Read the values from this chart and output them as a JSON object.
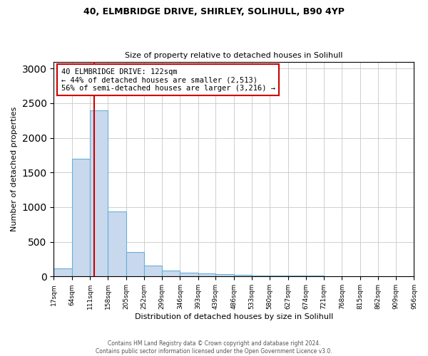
{
  "title1": "40, ELMBRIDGE DRIVE, SHIRLEY, SOLIHULL, B90 4YP",
  "title2": "Size of property relative to detached houses in Solihull",
  "xlabel": "Distribution of detached houses by size in Solihull",
  "ylabel": "Number of detached properties",
  "bar_values": [
    120,
    1700,
    2400,
    940,
    350,
    160,
    90,
    60,
    40,
    30,
    20,
    10,
    10,
    10,
    10,
    5,
    5,
    5,
    5,
    5
  ],
  "bin_edges": [
    17,
    64,
    111,
    158,
    205,
    252,
    299,
    346,
    393,
    439,
    486,
    533,
    580,
    627,
    674,
    721,
    768,
    815,
    862,
    909,
    956
  ],
  "tick_labels": [
    "17sqm",
    "64sqm",
    "111sqm",
    "158sqm",
    "205sqm",
    "252sqm",
    "299sqm",
    "346sqm",
    "393sqm",
    "439sqm",
    "486sqm",
    "533sqm",
    "580sqm",
    "627sqm",
    "674sqm",
    "721sqm",
    "768sqm",
    "815sqm",
    "862sqm",
    "909sqm",
    "956sqm"
  ],
  "bar_color": "#c8d9ee",
  "bar_edge_color": "#6baed6",
  "property_size": 122,
  "red_line_color": "#cc0000",
  "annotation_line1": "40 ELMBRIDGE DRIVE: 122sqm",
  "annotation_line2": "← 44% of detached houses are smaller (2,513)",
  "annotation_line3": "56% of semi-detached houses are larger (3,216) →",
  "annotation_box_color": "#ffffff",
  "annotation_box_edge": "#cc0000",
  "ylim": [
    0,
    3100
  ],
  "yticks": [
    0,
    500,
    1000,
    1500,
    2000,
    2500,
    3000
  ],
  "footer1": "Contains HM Land Registry data © Crown copyright and database right 2024.",
  "footer2": "Contains public sector information licensed under the Open Government Licence v3.0.",
  "bg_color": "#ffffff",
  "grid_color": "#c8c8c8"
}
